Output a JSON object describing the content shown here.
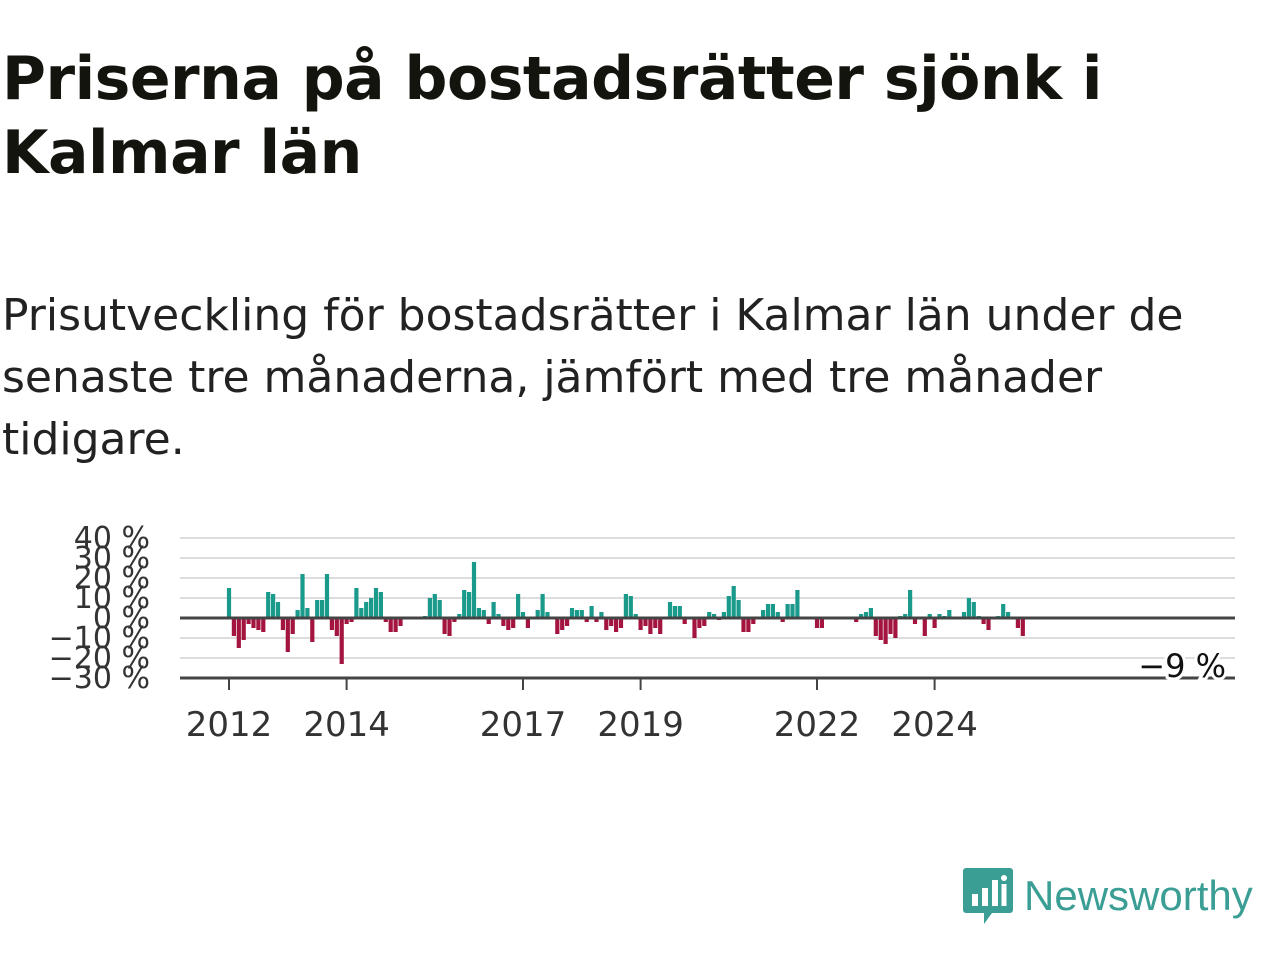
{
  "title": "Priserna på bostadsrätter sjönk i Kalmar län",
  "subtitle": "Prisutveckling för bostadsrätter i Kalmar län under de senaste tre månaderna, jämfört med tre månader tidigare.",
  "logo": {
    "text": "Newsworthy",
    "icon": "bar-chart-speech-icon",
    "color": "#3a9e94"
  },
  "colors": {
    "positive": "#1a9a8a",
    "negative": "#a3143f",
    "grid": "#dddddd",
    "zero": "#444444"
  },
  "chart_data": {
    "type": "bar",
    "title": "",
    "xlabel": "",
    "ylabel": "",
    "ylim": [
      -30,
      40
    ],
    "yticks": [
      40,
      30,
      20,
      10,
      0,
      -10,
      -20,
      -30
    ],
    "ytick_labels": [
      "40 %",
      "30 %",
      "20 %",
      "10 %",
      "0 %",
      "−10 %",
      "−20 %",
      "−30 %"
    ],
    "xticks": [
      "2012",
      "2014",
      "2017",
      "2019",
      "2022",
      "2024"
    ],
    "grid": true,
    "last_value_label": "−9 %",
    "start": "2012-01",
    "end": "2025-03",
    "values": [
      15,
      -9,
      -15,
      -11,
      -3,
      -5,
      -6,
      -7,
      13,
      12,
      8,
      -6,
      -17,
      -8,
      4,
      22,
      5,
      -12,
      9,
      9,
      22,
      -6,
      -9,
      -23,
      -3,
      -2,
      15,
      5,
      8,
      10,
      15,
      13,
      -2,
      -7,
      -7,
      -4,
      0,
      0,
      0,
      0,
      1,
      10,
      12,
      9,
      -8,
      -9,
      -2,
      2,
      14,
      13,
      28,
      5,
      4,
      -3,
      8,
      2,
      -4,
      -6,
      -5,
      12,
      3,
      -5,
      0,
      4,
      12,
      3,
      0,
      -8,
      -6,
      -4,
      5,
      4,
      4,
      -2,
      6,
      -2,
      3,
      -6,
      -4,
      -7,
      -5,
      12,
      11,
      2,
      -6,
      -4,
      -8,
      -5,
      -8,
      0,
      8,
      6,
      6,
      -3,
      0,
      -10,
      -5,
      -4,
      3,
      2,
      -1,
      3,
      11,
      16,
      9,
      -7,
      -7,
      -3,
      0,
      4,
      7,
      7,
      3,
      -2,
      7,
      7,
      14,
      0,
      0,
      0,
      -5,
      -5,
      0,
      0,
      0,
      0,
      0,
      0,
      -2,
      2,
      3,
      5,
      -9,
      -11,
      -13,
      -8,
      -10,
      1,
      2,
      14,
      -3,
      0,
      -9,
      2,
      -5,
      2,
      1,
      4,
      0,
      0,
      3,
      10,
      8,
      1,
      -3,
      -6,
      0,
      1,
      7,
      3,
      0,
      -5,
      -9
    ]
  }
}
